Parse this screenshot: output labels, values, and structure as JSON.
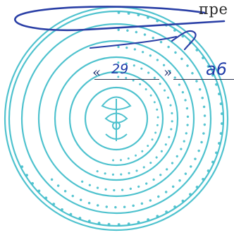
{
  "document": {
    "header_fragment": "пре",
    "date": {
      "open_quote": "«",
      "day": "29",
      "close_quote": "»",
      "month_fragment": "a6"
    }
  },
  "stamp": {
    "ink_color": "#2fb8c6",
    "shape": "round-seal"
  },
  "signature": {
    "ink_color": "#1f3aa8"
  }
}
